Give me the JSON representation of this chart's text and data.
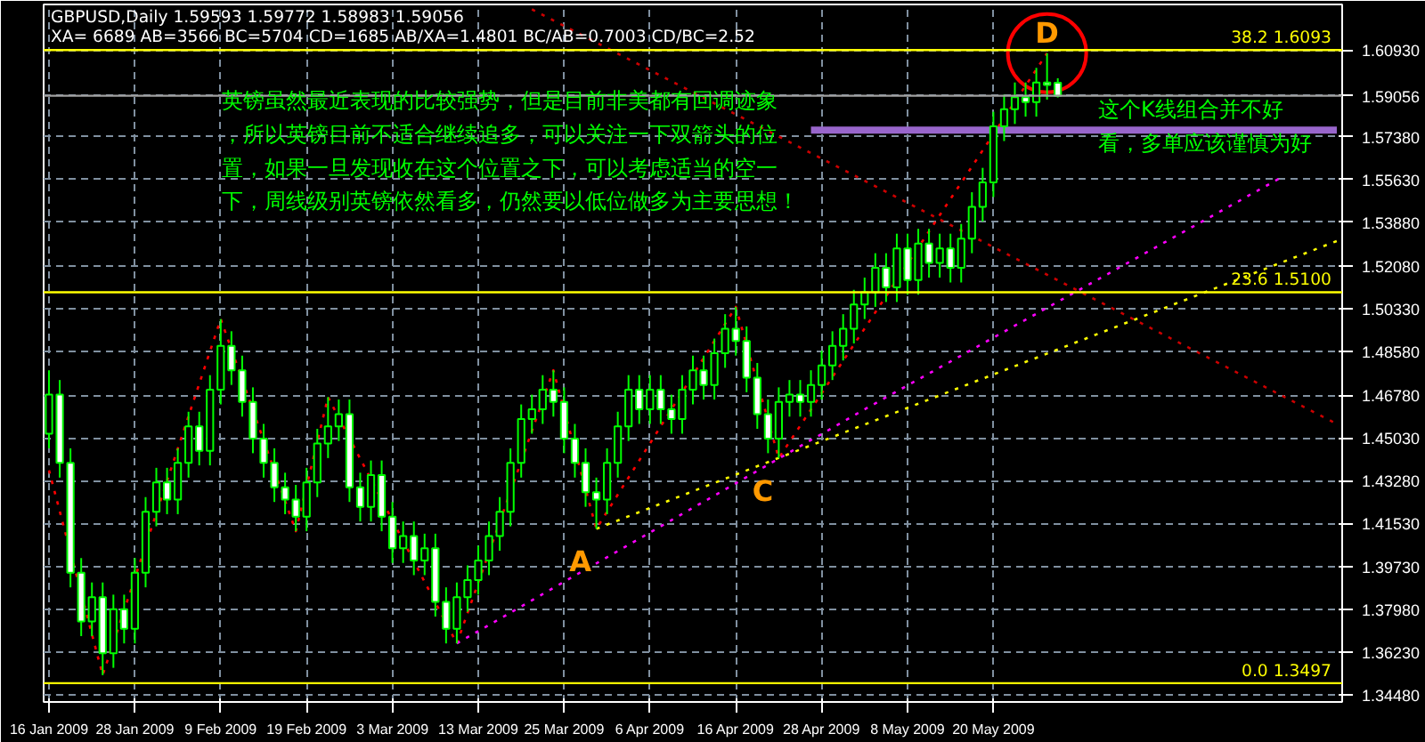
{
  "chart_data": {
    "type": "candlestick",
    "title": "GBPUSD,Daily  1.59593 1.59772 1.58983 1.59056",
    "subtitle": "XA= 6689 AB=3566 BC=5704 CD=1685 AB/XA=1.4801 BC/AB=0.7003 CD/BC=2.52",
    "annotations": [
      "英镑虽然最近表现的比较强势，但是目前非美都有回调迹象，所以英镑目前不适合继续追多，可以关注一下双箭头的位置，如果一旦发现收在这个位置之下，可以考虑适当的空一下，周线级别英镑依然看多，仍然要以低位做多为主要思想！",
      "这个K线组合并不好看，多单应该谨慎为好"
    ],
    "categories": [
      "16 Jan 2009",
      null,
      null,
      null,
      null,
      null,
      null,
      null,
      "28 Jan 2009",
      null,
      null,
      null,
      null,
      null,
      null,
      null,
      "9 Feb 2009",
      null,
      null,
      null,
      null,
      null,
      null,
      null,
      "19 Feb 2009",
      null,
      null,
      null,
      null,
      null,
      null,
      null,
      "3 Mar 2009",
      null,
      null,
      null,
      null,
      null,
      null,
      null,
      "13 Mar 2009",
      null,
      null,
      null,
      null,
      null,
      null,
      null,
      "25 Mar 2009",
      null,
      null,
      null,
      null,
      null,
      null,
      null,
      "6 Apr 2009",
      null,
      null,
      null,
      null,
      null,
      null,
      null,
      "16 Apr 2009",
      null,
      null,
      null,
      null,
      null,
      null,
      null,
      "28 Apr 2009",
      null,
      null,
      null,
      null,
      null,
      null,
      null,
      "8 May 2009",
      null,
      null,
      null,
      null,
      null,
      null,
      null,
      "20 May 2009",
      null,
      null,
      null,
      null,
      null,
      null,
      null,
      null,
      null,
      null,
      null,
      null,
      null,
      null,
      null,
      null,
      null,
      null,
      null,
      null,
      null,
      null,
      null,
      null,
      null,
      null,
      null,
      null,
      null,
      null,
      null,
      null
    ],
    "ohlc": [
      [
        1.452,
        1.478,
        1.446,
        1.468
      ],
      [
        1.468,
        1.474,
        1.434,
        1.44
      ],
      [
        1.44,
        1.446,
        1.389,
        1.395
      ],
      [
        1.395,
        1.401,
        1.369,
        1.375
      ],
      [
        1.375,
        1.391,
        1.369,
        1.385
      ],
      [
        1.385,
        1.391,
        1.353,
        1.362
      ],
      [
        1.362,
        1.386,
        1.356,
        1.38
      ],
      [
        1.38,
        1.386,
        1.366,
        1.372
      ],
      [
        1.372,
        1.401,
        1.366,
        1.395
      ],
      [
        1.395,
        1.426,
        1.389,
        1.42
      ],
      [
        1.42,
        1.438,
        1.414,
        1.432
      ],
      [
        1.432,
        1.438,
        1.419,
        1.425
      ],
      [
        1.425,
        1.446,
        1.419,
        1.44
      ],
      [
        1.44,
        1.461,
        1.434,
        1.455
      ],
      [
        1.455,
        1.461,
        1.439,
        1.445
      ],
      [
        1.445,
        1.476,
        1.439,
        1.47
      ],
      [
        1.47,
        1.499,
        1.464,
        1.488
      ],
      [
        1.488,
        1.494,
        1.472,
        1.478
      ],
      [
        1.478,
        1.484,
        1.459,
        1.465
      ],
      [
        1.465,
        1.471,
        1.444,
        1.45
      ],
      [
        1.45,
        1.456,
        1.434,
        1.44
      ],
      [
        1.44,
        1.446,
        1.424,
        1.43
      ],
      [
        1.43,
        1.436,
        1.419,
        1.425
      ],
      [
        1.425,
        1.431,
        1.412,
        1.418
      ],
      [
        1.418,
        1.438,
        1.412,
        1.432
      ],
      [
        1.432,
        1.454,
        1.426,
        1.448
      ],
      [
        1.448,
        1.467,
        1.442,
        1.455
      ],
      [
        1.455,
        1.466,
        1.449,
        1.46
      ],
      [
        1.46,
        1.466,
        1.424,
        1.43
      ],
      [
        1.43,
        1.436,
        1.416,
        1.422
      ],
      [
        1.422,
        1.441,
        1.416,
        1.435
      ],
      [
        1.435,
        1.441,
        1.412,
        1.418
      ],
      [
        1.418,
        1.424,
        1.399,
        1.405
      ],
      [
        1.405,
        1.416,
        1.399,
        1.41
      ],
      [
        1.41,
        1.416,
        1.394,
        1.4
      ],
      [
        1.4,
        1.411,
        1.394,
        1.405
      ],
      [
        1.405,
        1.411,
        1.377,
        1.383
      ],
      [
        1.383,
        1.389,
        1.366,
        1.372
      ],
      [
        1.372,
        1.391,
        1.366,
        1.385
      ],
      [
        1.385,
        1.398,
        1.379,
        1.392
      ],
      [
        1.392,
        1.406,
        1.386,
        1.4
      ],
      [
        1.4,
        1.416,
        1.394,
        1.41
      ],
      [
        1.41,
        1.426,
        1.404,
        1.42
      ],
      [
        1.42,
        1.446,
        1.414,
        1.44
      ],
      [
        1.44,
        1.464,
        1.434,
        1.458
      ],
      [
        1.458,
        1.468,
        1.452,
        1.462
      ],
      [
        1.462,
        1.476,
        1.456,
        1.47
      ],
      [
        1.47,
        1.478,
        1.459,
        1.465
      ],
      [
        1.465,
        1.471,
        1.444,
        1.45
      ],
      [
        1.45,
        1.456,
        1.434,
        1.44
      ],
      [
        1.44,
        1.446,
        1.422,
        1.428
      ],
      [
        1.428,
        1.434,
        1.413,
        1.425
      ],
      [
        1.425,
        1.446,
        1.419,
        1.44
      ],
      [
        1.44,
        1.461,
        1.434,
        1.455
      ],
      [
        1.455,
        1.476,
        1.449,
        1.47
      ],
      [
        1.47,
        1.476,
        1.456,
        1.462
      ],
      [
        1.462,
        1.476,
        1.456,
        1.47
      ],
      [
        1.47,
        1.476,
        1.456,
        1.462
      ],
      [
        1.462,
        1.468,
        1.452,
        1.458
      ],
      [
        1.458,
        1.476,
        1.452,
        1.47
      ],
      [
        1.47,
        1.484,
        1.464,
        1.478
      ],
      [
        1.478,
        1.484,
        1.466,
        1.472
      ],
      [
        1.472,
        1.491,
        1.466,
        1.485
      ],
      [
        1.485,
        1.501,
        1.479,
        1.495
      ],
      [
        1.495,
        1.504,
        1.484,
        1.49
      ],
      [
        1.49,
        1.496,
        1.469,
        1.475
      ],
      [
        1.475,
        1.481,
        1.454,
        1.46
      ],
      [
        1.46,
        1.466,
        1.444,
        1.45
      ],
      [
        1.45,
        1.471,
        1.442,
        1.465
      ],
      [
        1.465,
        1.474,
        1.459,
        1.468
      ],
      [
        1.468,
        1.474,
        1.459,
        1.465
      ],
      [
        1.465,
        1.478,
        1.459,
        1.472
      ],
      [
        1.472,
        1.486,
        1.466,
        1.48
      ],
      [
        1.48,
        1.494,
        1.474,
        1.488
      ],
      [
        1.488,
        1.501,
        1.482,
        1.495
      ],
      [
        1.495,
        1.511,
        1.489,
        1.505
      ],
      [
        1.505,
        1.516,
        1.499,
        1.51
      ],
      [
        1.51,
        1.526,
        1.504,
        1.52
      ],
      [
        1.52,
        1.526,
        1.506,
        1.512
      ],
      [
        1.512,
        1.534,
        1.506,
        1.528
      ],
      [
        1.528,
        1.534,
        1.509,
        1.515
      ],
      [
        1.515,
        1.536,
        1.509,
        1.53
      ],
      [
        1.53,
        1.536,
        1.516,
        1.522
      ],
      [
        1.522,
        1.534,
        1.516,
        1.528
      ],
      [
        1.528,
        1.534,
        1.514,
        1.52
      ],
      [
        1.52,
        1.538,
        1.514,
        1.532
      ],
      [
        1.532,
        1.551,
        1.526,
        1.545
      ],
      [
        1.545,
        1.561,
        1.539,
        1.555
      ],
      [
        1.555,
        1.584,
        1.549,
        1.578
      ],
      [
        1.578,
        1.591,
        1.572,
        1.585
      ],
      [
        1.585,
        1.596,
        1.579,
        1.59
      ],
      [
        1.59,
        1.596,
        1.582,
        1.588
      ],
      [
        1.588,
        1.602,
        1.582,
        1.596
      ],
      [
        1.596,
        1.608,
        1.589,
        1.595
      ],
      [
        1.59593,
        1.59772,
        1.58983,
        1.59056
      ],
      null,
      null,
      null,
      null,
      null,
      null,
      null,
      null,
      null,
      null,
      null,
      null,
      null,
      null,
      null,
      null,
      null,
      null,
      null,
      null,
      null,
      null,
      null,
      null,
      null,
      null
    ],
    "series": [
      {
        "type": "line",
        "color": "#ff0000",
        "line_style": "dotted",
        "values": [
          1.437,
          null,
          null,
          null,
          null,
          1.353,
          null,
          null,
          null,
          null,
          null,
          null,
          null,
          null,
          null,
          null,
          1.499,
          null,
          null,
          null,
          null,
          null,
          null,
          1.412,
          null,
          null,
          1.467,
          null,
          null,
          null,
          null,
          null,
          null,
          null,
          null,
          null,
          null,
          null,
          1.366,
          null,
          null,
          null,
          null,
          null,
          null,
          null,
          null,
          1.478,
          null,
          null,
          null,
          1.413,
          null,
          null,
          null,
          null,
          null,
          null,
          null,
          null,
          null,
          null,
          null,
          null,
          1.504,
          null,
          null,
          null,
          1.442,
          null,
          null,
          null,
          null,
          null,
          null,
          null,
          null,
          null,
          null,
          null,
          null,
          null,
          null,
          null,
          null,
          null,
          null,
          null,
          null,
          null,
          null,
          null,
          null,
          1.608,
          null,
          null,
          null,
          null,
          null,
          null,
          null,
          null,
          null,
          null,
          null,
          null,
          null,
          null,
          null,
          null,
          null,
          null,
          null,
          null,
          null,
          null,
          null,
          null,
          null,
          null,
          null
        ],
        "value_labels": [
          null,
          null,
          null,
          null,
          null,
          null,
          null,
          null,
          null,
          null,
          null,
          null,
          null,
          null,
          null,
          null,
          null,
          null,
          null,
          null,
          null,
          null,
          null,
          null,
          null,
          null,
          null,
          null,
          null,
          null,
          null,
          null,
          null,
          null,
          null,
          null,
          null,
          null,
          null,
          null,
          null,
          null,
          null,
          null,
          null,
          null,
          null,
          null,
          null,
          null,
          null,
          "A",
          null,
          null,
          null,
          null,
          null,
          null,
          null,
          null,
          null,
          null,
          null,
          null,
          null,
          null,
          null,
          null,
          "C",
          null,
          null,
          null,
          null,
          null,
          null,
          null,
          null,
          null,
          null,
          null,
          null,
          null,
          null,
          null,
          null,
          null,
          null,
          null,
          null,
          null,
          null,
          null,
          null,
          "D",
          null,
          null,
          null,
          null,
          null,
          null,
          null,
          null,
          null,
          null,
          null,
          null,
          null,
          null,
          null,
          null,
          null,
          null,
          null,
          null,
          null,
          null,
          null,
          null,
          null,
          null,
          null
        ]
      },
      {
        "type": "line",
        "color": "#ff00ff",
        "line_style": "dotted",
        "values": [
          null,
          null,
          null,
          null,
          null,
          null,
          null,
          null,
          null,
          null,
          null,
          null,
          null,
          null,
          null,
          null,
          null,
          null,
          null,
          null,
          null,
          null,
          null,
          null,
          null,
          null,
          null,
          null,
          null,
          null,
          null,
          null,
          null,
          null,
          null,
          null,
          null,
          null,
          1.366,
          null,
          null,
          null,
          null,
          null,
          null,
          null,
          null,
          null,
          null,
          null,
          null,
          null,
          null,
          null,
          null,
          null,
          null,
          null,
          null,
          null,
          null,
          null,
          null,
          null,
          null,
          null,
          null,
          null,
          null,
          null,
          null,
          null,
          null,
          null,
          null,
          null,
          1.462,
          null,
          null,
          null,
          null,
          null,
          null,
          null,
          null,
          null,
          null,
          null,
          null,
          null,
          null,
          null,
          null,
          null,
          null,
          null,
          null,
          null,
          null,
          null,
          null,
          null,
          null,
          null,
          null,
          null,
          null,
          null,
          null,
          null,
          null,
          null,
          null,
          null,
          null,
          1.5575,
          null,
          null,
          null,
          null,
          null
        ]
      },
      {
        "type": "line",
        "color": "#ffff00",
        "line_style": "dotted",
        "values": [
          null,
          null,
          null,
          null,
          null,
          null,
          null,
          null,
          null,
          null,
          null,
          null,
          null,
          null,
          null,
          null,
          null,
          null,
          null,
          null,
          null,
          null,
          null,
          null,
          null,
          null,
          null,
          null,
          null,
          null,
          null,
          null,
          null,
          null,
          null,
          null,
          null,
          null,
          null,
          null,
          null,
          null,
          null,
          null,
          null,
          null,
          null,
          null,
          null,
          null,
          null,
          1.413,
          null,
          null,
          null,
          null,
          null,
          null,
          null,
          null,
          null,
          null,
          null,
          null,
          null,
          null,
          null,
          null,
          null,
          null,
          null,
          null,
          null,
          null,
          null,
          null,
          null,
          null,
          null,
          null,
          null,
          null,
          null,
          null,
          null,
          null,
          null,
          null,
          null,
          null,
          null,
          null,
          null,
          null,
          null,
          null,
          null,
          null,
          null,
          null,
          null,
          null,
          null,
          null,
          null,
          null,
          null,
          null,
          null,
          null,
          null,
          null,
          null,
          null,
          null,
          null,
          null,
          null,
          null,
          null,
          1.531
        ]
      },
      {
        "type": "line",
        "color": "#cc0000",
        "line_style": "dotted",
        "values": [
          null,
          null,
          null,
          null,
          null,
          null,
          null,
          null,
          null,
          null,
          null,
          null,
          null,
          null,
          null,
          null,
          null,
          null,
          null,
          null,
          null,
          null,
          null,
          null,
          null,
          null,
          null,
          null,
          null,
          null,
          null,
          null,
          null,
          null,
          null,
          null,
          null,
          null,
          null,
          null,
          null,
          null,
          null,
          null,
          null,
          1.626,
          null,
          null,
          null,
          null,
          null,
          null,
          null,
          null,
          null,
          null,
          null,
          null,
          null,
          null,
          null,
          null,
          null,
          null,
          null,
          null,
          null,
          null,
          null,
          null,
          null,
          null,
          null,
          null,
          null,
          null,
          null,
          null,
          null,
          null,
          null,
          null,
          null,
          null,
          null,
          null,
          null,
          null,
          null,
          null,
          null,
          null,
          null,
          null,
          null,
          null,
          null,
          null,
          null,
          null,
          null,
          null,
          null,
          null,
          null,
          null,
          null,
          null,
          null,
          null,
          null,
          null,
          null,
          null,
          null,
          null,
          null,
          null,
          null,
          null,
          1.456
        ]
      },
      {
        "type": "line",
        "color": "#9966cc",
        "line_style": "solid",
        "values": [
          null,
          null,
          null,
          null,
          null,
          null,
          null,
          null,
          null,
          null,
          null,
          null,
          null,
          null,
          null,
          null,
          null,
          null,
          null,
          null,
          null,
          null,
          null,
          null,
          null,
          null,
          null,
          null,
          null,
          null,
          null,
          null,
          null,
          null,
          null,
          null,
          null,
          null,
          null,
          null,
          null,
          null,
          null,
          null,
          null,
          null,
          null,
          null,
          null,
          null,
          null,
          null,
          null,
          null,
          null,
          null,
          null,
          null,
          null,
          null,
          null,
          null,
          null,
          null,
          null,
          null,
          null,
          null,
          null,
          null,
          null,
          1.5765,
          null,
          null,
          null,
          null,
          null,
          null,
          null,
          null,
          null,
          null,
          null,
          null,
          null,
          null,
          null,
          null,
          null,
          null,
          null,
          null,
          null,
          null,
          null,
          null,
          null,
          null,
          null,
          null,
          null,
          null,
          null,
          null,
          null,
          null,
          null,
          null,
          null,
          null,
          null,
          null,
          null,
          null,
          null,
          null,
          null,
          null,
          null,
          null,
          1.5765
        ]
      }
    ],
    "ref_lines": [
      {
        "axis": "y",
        "value": 1.6093,
        "label": "38.2 1.6093",
        "color": "#ffff00"
      },
      {
        "axis": "y",
        "value": 1.59056,
        "color": "#a0a0a0"
      },
      {
        "axis": "y",
        "value": 1.51,
        "label": "23.6 1.5100",
        "color": "#ffff00"
      },
      {
        "axis": "y",
        "value": 1.3497,
        "label": "0.0 1.3497",
        "color": "#ffff00"
      }
    ],
    "ylim": [
      1.342,
      1.628
    ],
    "yticks": [
      {
        "value": 1.6093,
        "label": "1.60930"
      },
      {
        "value": 1.59056,
        "label": "1.59056"
      },
      {
        "value": 1.5738,
        "label": "1.57380"
      },
      {
        "value": 1.5563,
        "label": "1.55630"
      },
      {
        "value": 1.5388,
        "label": "1.53880"
      },
      {
        "value": 1.5208,
        "label": "1.52080"
      },
      {
        "value": 1.5033,
        "label": "1.50330"
      },
      {
        "value": 1.4858,
        "label": "1.48580"
      },
      {
        "value": 1.4678,
        "label": "1.46780"
      },
      {
        "value": 1.4503,
        "label": "1.45030"
      },
      {
        "value": 1.4328,
        "label": "1.43280"
      },
      {
        "value": 1.4153,
        "label": "1.41530"
      },
      {
        "value": 1.3973,
        "label": "1.39730"
      },
      {
        "value": 1.3798,
        "label": "1.37980"
      },
      {
        "value": 1.3623,
        "label": "1.36230"
      },
      {
        "value": 1.3448,
        "label": "1.34480"
      }
    ],
    "grid": true
  }
}
